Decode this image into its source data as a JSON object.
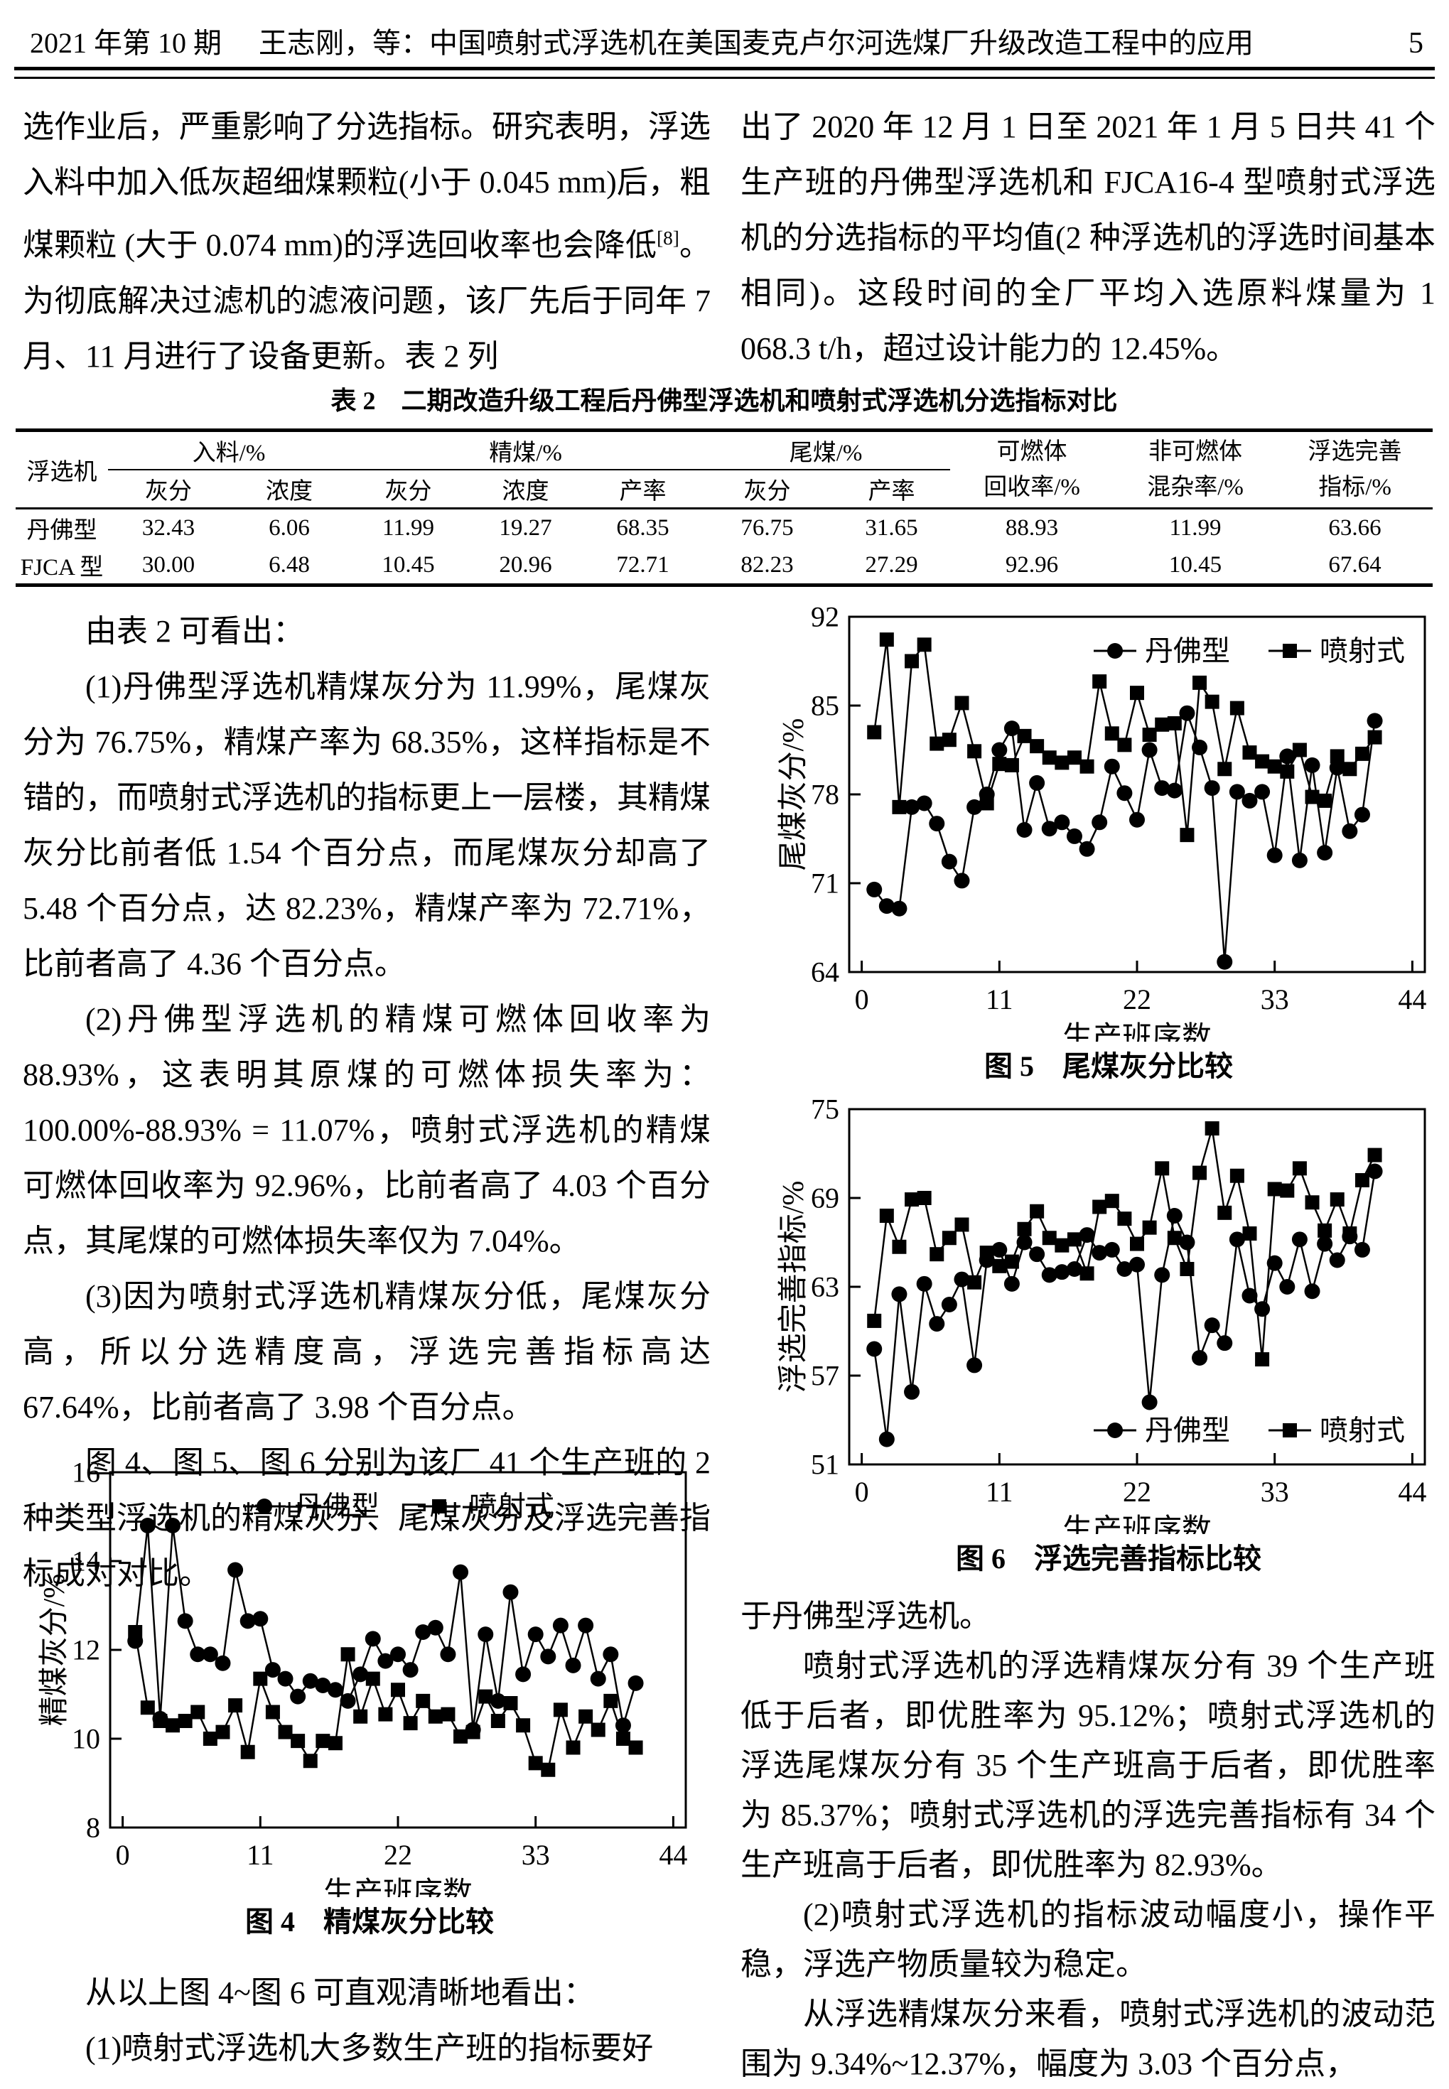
{
  "header": {
    "issue": "2021 年第 10 期",
    "title": "王志刚，等：中国喷射式浮选机在美国麦克卢尔河选煤厂升级改造工程中的应用",
    "page_number": "5"
  },
  "body": {
    "top_left": [
      {
        "indent": false,
        "text": "选作业后，严重影响了分选指标。研究表明，浮选入料中加入低灰超细煤颗粒(小于 0.045 mm)后，粗煤颗粒 (大于 0.074 mm)的浮选回收率也会降低[8]。为彻底解决过滤机的滤液问题，该厂先后于同年 7 月、11 月进行了设备更新。表 2 列"
      }
    ],
    "top_right": [
      {
        "indent": false,
        "text": "出了 2020 年 12 月 1 日至 2021 年 1 月 5 日共 41 个生产班的丹佛型浮选机和 FJCA16-4 型喷射式浮选机的分选指标的平均值(2 种浮选机的浮选时间基本相同)。这段时间的全厂平均入选原料煤量为 1 068.3 t/h，超过设计能力的 12.45%。"
      }
    ],
    "left_after_table": [
      {
        "indent": true,
        "text": "由表 2 可看出："
      },
      {
        "indent": true,
        "text": "(1)丹佛型浮选机精煤灰分为 11.99%，尾煤灰分为 76.75%，精煤产率为 68.35%，这样指标是不错的，而喷射式浮选机的指标更上一层楼，其精煤灰分比前者低 1.54 个百分点，而尾煤灰分却高了 5.48 个百分点，达 82.23%，精煤产率为 72.71%，比前者高了 4.36 个百分点。"
      },
      {
        "indent": true,
        "text": "(2)丹佛型浮选机的精煤可燃体回收率为 88.93%，这表明其原煤的可燃体损失率为：100.00%-88.93% = 11.07%，喷射式浮选机的精煤可燃体回收率为 92.96%，比前者高了 4.03 个百分点，其尾煤的可燃体损失率仅为 7.04%。"
      },
      {
        "indent": true,
        "text": "(3)因为喷射式浮选机精煤灰分低，尾煤灰分高，所以分选精度高，浮选完善指标高达 67.64%，比前者高了 3.98 个百分点。"
      },
      {
        "indent": true,
        "text": "图 4、图 5、图 6 分别为该厂 41 个生产班的 2 种类型浮选机的精煤灰分、尾煤灰分及浮选完善指标成对对比。"
      }
    ],
    "left_bottom": [
      {
        "indent": true,
        "text": "从以上图 4~图 6 可直观清晰地看出："
      },
      {
        "indent": true,
        "text": "(1)喷射式浮选机大多数生产班的指标要好"
      }
    ],
    "right_bottom": [
      {
        "indent": false,
        "text": "于丹佛型浮选机。"
      },
      {
        "indent": true,
        "text": "喷射式浮选机的浮选精煤灰分有 39 个生产班低于后者，即优胜率为 95.12%；喷射式浮选机的浮选尾煤灰分有 35 个生产班高于后者，即优胜率为 85.37%；喷射式浮选机的浮选完善指标有 34 个生产班高于后者，即优胜率为 82.93%。"
      },
      {
        "indent": true,
        "text": "(2)喷射式浮选机的指标波动幅度小，操作平稳，浮选产物质量较为稳定。"
      },
      {
        "indent": true,
        "text": "从浮选精煤灰分来看，喷射式浮选机的波动范围为 9.34%~12.37%，幅度为 3.03 个百分点，"
      }
    ]
  },
  "table": {
    "title": "表 2　二期改造升级工程后丹佛型浮选机和喷射式浮选机分选指标对比",
    "col_machine": "浮选机",
    "groups": [
      {
        "label": "入料/%",
        "cols": [
          "灰分",
          "浓度"
        ]
      },
      {
        "label": "精煤/%",
        "cols": [
          "灰分",
          "浓度",
          "产率"
        ]
      },
      {
        "label": "尾煤/%",
        "cols": [
          "灰分",
          "产率"
        ]
      }
    ],
    "tall_headers": [
      [
        "可燃体",
        "回收率/%"
      ],
      [
        "非可燃体",
        "混杂率/%"
      ],
      [
        "浮选完善",
        "指标/%"
      ]
    ],
    "rows": [
      {
        "machine": "丹佛型",
        "values": [
          "32.43",
          "6.06",
          "11.99",
          "19.27",
          "68.35",
          "76.75",
          "31.65",
          "88.93",
          "11.99",
          "63.66"
        ]
      },
      {
        "machine": "FJCA 型",
        "values": [
          "30.00",
          "6.48",
          "10.45",
          "20.96",
          "72.71",
          "82.23",
          "27.29",
          "92.96",
          "10.45",
          "67.64"
        ]
      }
    ]
  },
  "chart_data": [
    {
      "id": "fig4",
      "type": "line",
      "caption": "图 4　精煤灰分比较",
      "xlabel": "生产班序数",
      "ylabel": "精煤灰分/%",
      "xlim": [
        0,
        44
      ],
      "xticks": [
        0,
        11,
        22,
        33,
        44
      ],
      "ylim": [
        8,
        16
      ],
      "yticks": [
        8,
        10,
        12,
        14,
        16
      ],
      "n_points": 41,
      "x_start": 1,
      "x_step": 1,
      "grid": false,
      "legend_pos": "top-center",
      "series": [
        {
          "name": "丹佛型",
          "marker": "circle",
          "values": [
            12.2,
            14.8,
            10.45,
            14.8,
            12.65,
            11.9,
            11.9,
            11.7,
            13.8,
            12.65,
            12.7,
            11.55,
            11.35,
            10.95,
            11.3,
            11.2,
            11.1,
            10.85,
            11.45,
            12.25,
            11.75,
            11.9,
            11.55,
            12.4,
            12.5,
            11.9,
            13.75,
            10.2,
            12.35,
            10.85,
            13.3,
            11.45,
            12.35,
            11.85,
            12.55,
            11.65,
            12.55,
            11.35,
            11.9,
            10.3,
            11.25
          ]
        },
        {
          "name": "喷射式",
          "marker": "square",
          "values": [
            12.4,
            10.7,
            10.4,
            10.3,
            10.4,
            10.6,
            10.0,
            10.15,
            10.75,
            9.7,
            11.35,
            10.6,
            10.15,
            9.95,
            9.5,
            9.95,
            9.9,
            11.9,
            10.5,
            11.35,
            10.55,
            11.1,
            10.35,
            10.85,
            10.5,
            10.55,
            10.05,
            10.15,
            10.95,
            10.4,
            10.8,
            10.3,
            9.45,
            9.3,
            10.65,
            9.8,
            10.5,
            10.2,
            10.85,
            10.0,
            9.8
          ]
        }
      ]
    },
    {
      "id": "fig5",
      "type": "line",
      "caption": "图 5　尾煤灰分比较",
      "xlabel": "生产班序数",
      "ylabel": "尾煤灰分/%",
      "xlim": [
        0,
        44
      ],
      "xticks": [
        0,
        11,
        22,
        33,
        44
      ],
      "ylim": [
        64,
        92
      ],
      "yticks": [
        64,
        71,
        78,
        85,
        92
      ],
      "n_points": 41,
      "x_start": 1,
      "x_step": 1,
      "grid": false,
      "legend_pos": "top-right",
      "series": [
        {
          "name": "丹佛型",
          "marker": "circle",
          "values": [
            70.5,
            69.2,
            69.0,
            77.0,
            77.3,
            75.7,
            72.7,
            71.2,
            77.0,
            78.0,
            81.5,
            83.2,
            75.2,
            78.9,
            75.3,
            75.8,
            74.7,
            73.7,
            75.8,
            80.2,
            78.1,
            76.0,
            81.5,
            78.5,
            78.3,
            84.4,
            81.7,
            78.5,
            64.8,
            78.2,
            77.5,
            78.2,
            73.2,
            81.0,
            72.8,
            80.3,
            73.4,
            80.1,
            75.1,
            76.4,
            83.8
          ]
        },
        {
          "name": "喷射式",
          "marker": "square",
          "values": [
            82.9,
            90.2,
            77.0,
            88.5,
            89.8,
            82.0,
            82.3,
            85.2,
            81.4,
            77.3,
            80.4,
            80.3,
            82.6,
            81.8,
            80.9,
            80.5,
            80.9,
            80.2,
            86.9,
            82.8,
            81.9,
            86.0,
            82.7,
            83.5,
            83.6,
            74.8,
            86.8,
            85.3,
            80.0,
            84.8,
            81.3,
            80.6,
            80.2,
            79.8,
            81.5,
            77.8,
            77.5,
            81.0,
            80.0,
            81.2,
            82.5
          ]
        }
      ]
    },
    {
      "id": "fig6",
      "type": "line",
      "caption": "图 6　浮选完善指标比较",
      "xlabel": "生产班序数",
      "ylabel": "浮选完善指标/%",
      "xlim": [
        0,
        44
      ],
      "xticks": [
        0,
        11,
        22,
        33,
        44
      ],
      "ylim": [
        51,
        75
      ],
      "yticks": [
        51,
        57,
        63,
        69,
        75
      ],
      "n_points": 41,
      "x_start": 1,
      "x_step": 1,
      "grid": false,
      "legend_pos": "bottom-right",
      "series": [
        {
          "name": "丹佛型",
          "marker": "circle",
          "values": [
            58.8,
            52.7,
            62.5,
            55.9,
            63.2,
            60.5,
            61.8,
            63.5,
            57.7,
            64.8,
            65.5,
            63.2,
            66.0,
            65.2,
            63.8,
            64.0,
            64.2,
            66.5,
            65.3,
            65.5,
            64.2,
            64.5,
            55.2,
            63.8,
            67.8,
            66.0,
            58.2,
            60.4,
            59.2,
            66.2,
            62.4,
            61.5,
            64.6,
            63.0,
            66.2,
            62.7,
            65.9,
            64.8,
            66.4,
            65.5,
            70.8
          ]
        },
        {
          "name": "喷射式",
          "marker": "square",
          "values": [
            60.7,
            67.8,
            65.7,
            68.9,
            69.0,
            65.2,
            66.3,
            67.2,
            63.3,
            65.3,
            64.4,
            64.7,
            66.9,
            68.1,
            66.3,
            65.8,
            66.2,
            63.9,
            68.4,
            68.8,
            67.6,
            65.9,
            67.0,
            71.0,
            66.3,
            64.2,
            70.7,
            73.7,
            68.0,
            70.5,
            66.6,
            58.1,
            69.6,
            69.5,
            71.0,
            68.7,
            66.8,
            68.9,
            66.6,
            70.2,
            71.9
          ]
        }
      ]
    }
  ]
}
